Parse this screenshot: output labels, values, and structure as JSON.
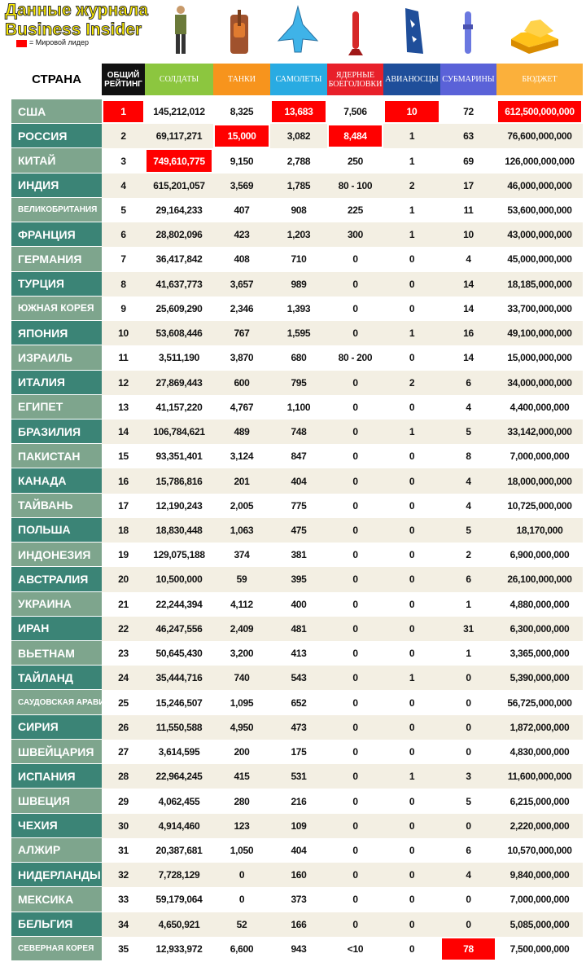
{
  "header": {
    "title_line1": "Данные журнала",
    "title_line2": "Business Insider",
    "legend": "= Мировой лидер",
    "legend_color": "#ff0000"
  },
  "table": {
    "country_header": "СТРАНА",
    "columns": [
      {
        "label": "ОБЩИЙ РЕЙТИНГ",
        "color": "#111111"
      },
      {
        "label": "СОЛДАТЫ",
        "color": "#8cc63f"
      },
      {
        "label": "ТАНКИ",
        "color": "#f7941d"
      },
      {
        "label": "САМОЛЕТЫ",
        "color": "#29abe2"
      },
      {
        "label": "ЯДЕРНЫЕ БОЕГОЛОВКИ",
        "color": "#e8202a"
      },
      {
        "label": "АВИАНОСЦЫ",
        "color": "#1f4e9a"
      },
      {
        "label": "СУБМАРИНЫ",
        "color": "#5a62d8"
      },
      {
        "label": "БЮДЖЕТ",
        "color": "#fbb03b"
      }
    ],
    "rows": [
      [
        "США",
        "1",
        "145,212,012",
        "8,325",
        "13,683",
        "7,506",
        "10",
        "72",
        "612,500,000,000"
      ],
      [
        "РОССИЯ",
        "2",
        "69,117,271",
        "15,000",
        "3,082",
        "8,484",
        "1",
        "63",
        "76,600,000,000"
      ],
      [
        "КИТАЙ",
        "3",
        "749,610,775",
        "9,150",
        "2,788",
        "250",
        "1",
        "69",
        "126,000,000,000"
      ],
      [
        "ИНДИЯ",
        "4",
        "615,201,057",
        "3,569",
        "1,785",
        "80 - 100",
        "2",
        "17",
        "46,000,000,000"
      ],
      [
        "ВЕЛИКОБРИТАНИЯ",
        "5",
        "29,164,233",
        "407",
        "908",
        "225",
        "1",
        "11",
        "53,600,000,000"
      ],
      [
        "ФРАНЦИЯ",
        "6",
        "28,802,096",
        "423",
        "1,203",
        "300",
        "1",
        "10",
        "43,000,000,000"
      ],
      [
        "ГЕРМАНИЯ",
        "7",
        "36,417,842",
        "408",
        "710",
        "0",
        "0",
        "4",
        "45,000,000,000"
      ],
      [
        "ТУРЦИЯ",
        "8",
        "41,637,773",
        "3,657",
        "989",
        "0",
        "0",
        "14",
        "18,185,000,000"
      ],
      [
        "ЮЖНАЯ КОРЕЯ",
        "9",
        "25,609,290",
        "2,346",
        "1,393",
        "0",
        "0",
        "14",
        "33,700,000,000"
      ],
      [
        "ЯПОНИЯ",
        "10",
        "53,608,446",
        "767",
        "1,595",
        "0",
        "1",
        "16",
        "49,100,000,000"
      ],
      [
        "ИЗРАИЛЬ",
        "11",
        "3,511,190",
        "3,870",
        "680",
        "80 - 200",
        "0",
        "14",
        "15,000,000,000"
      ],
      [
        "ИТАЛИЯ",
        "12",
        "27,869,443",
        "600",
        "795",
        "0",
        "2",
        "6",
        "34,000,000,000"
      ],
      [
        "ЕГИПЕТ",
        "13",
        "41,157,220",
        "4,767",
        "1,100",
        "0",
        "0",
        "4",
        "4,400,000,000"
      ],
      [
        "БРАЗИЛИЯ",
        "14",
        "106,784,621",
        "489",
        "748",
        "0",
        "1",
        "5",
        "33,142,000,000"
      ],
      [
        "ПАКИСТАН",
        "15",
        "93,351,401",
        "3,124",
        "847",
        "0",
        "0",
        "8",
        "7,000,000,000"
      ],
      [
        "КАНАДА",
        "16",
        "15,786,816",
        "201",
        "404",
        "0",
        "0",
        "4",
        "18,000,000,000"
      ],
      [
        "ТАЙВАНЬ",
        "17",
        "12,190,243",
        "2,005",
        "775",
        "0",
        "0",
        "4",
        "10,725,000,000"
      ],
      [
        "ПОЛЬША",
        "18",
        "18,830,448",
        "1,063",
        "475",
        "0",
        "0",
        "5",
        "18,170,000"
      ],
      [
        "ИНДОНЕЗИЯ",
        "19",
        "129,075,188",
        "374",
        "381",
        "0",
        "0",
        "2",
        "6,900,000,000"
      ],
      [
        "АВСТРАЛИЯ",
        "20",
        "10,500,000",
        "59",
        "395",
        "0",
        "0",
        "6",
        "26,100,000,000"
      ],
      [
        "УКРАИНА",
        "21",
        "22,244,394",
        "4,112",
        "400",
        "0",
        "0",
        "1",
        "4,880,000,000"
      ],
      [
        "ИРАН",
        "22",
        "46,247,556",
        "2,409",
        "481",
        "0",
        "0",
        "31",
        "6,300,000,000"
      ],
      [
        "ВЬЕТНАМ",
        "23",
        "50,645,430",
        "3,200",
        "413",
        "0",
        "0",
        "1",
        "3,365,000,000"
      ],
      [
        "ТАЙЛАНД",
        "24",
        "35,444,716",
        "740",
        "543",
        "0",
        "1",
        "0",
        "5,390,000,000"
      ],
      [
        "САУДОВСКАЯ АРАВИЯ",
        "25",
        "15,246,507",
        "1,095",
        "652",
        "0",
        "0",
        "0",
        "56,725,000,000"
      ],
      [
        "СИРИЯ",
        "26",
        "11,550,588",
        "4,950",
        "473",
        "0",
        "0",
        "0",
        "1,872,000,000"
      ],
      [
        "ШВЕЙЦАРИЯ",
        "27",
        "3,614,595",
        "200",
        "175",
        "0",
        "0",
        "0",
        "4,830,000,000"
      ],
      [
        "ИСПАНИЯ",
        "28",
        "22,964,245",
        "415",
        "531",
        "0",
        "1",
        "3",
        "11,600,000,000"
      ],
      [
        "ШВЕЦИЯ",
        "29",
        "4,062,455",
        "280",
        "216",
        "0",
        "0",
        "5",
        "6,215,000,000"
      ],
      [
        "ЧЕХИЯ",
        "30",
        "4,914,460",
        "123",
        "109",
        "0",
        "0",
        "0",
        "2,220,000,000"
      ],
      [
        "АЛЖИР",
        "31",
        "20,387,681",
        "1,050",
        "404",
        "0",
        "0",
        "6",
        "10,570,000,000"
      ],
      [
        "НИДЕРЛАНДЫ",
        "32",
        "7,728,129",
        "0",
        "160",
        "0",
        "0",
        "4",
        "9,840,000,000"
      ],
      [
        "МЕКСИКА",
        "33",
        "59,179,064",
        "0",
        "373",
        "0",
        "0",
        "0",
        "7,000,000,000"
      ],
      [
        "БЕЛЬГИЯ",
        "34",
        "4,650,921",
        "52",
        "166",
        "0",
        "0",
        "0",
        "5,085,000,000"
      ],
      [
        "СЕВЕРНАЯ КОРЕЯ",
        "35",
        "12,933,972",
        "6,600",
        "943",
        "<10",
        "0",
        "78",
        "7,500,000,000"
      ]
    ],
    "leaders": [
      [
        0,
        1
      ],
      [
        0,
        4
      ],
      [
        0,
        6
      ],
      [
        0,
        8
      ],
      [
        1,
        3
      ],
      [
        1,
        5
      ],
      [
        2,
        2
      ],
      [
        34,
        7
      ]
    ]
  }
}
